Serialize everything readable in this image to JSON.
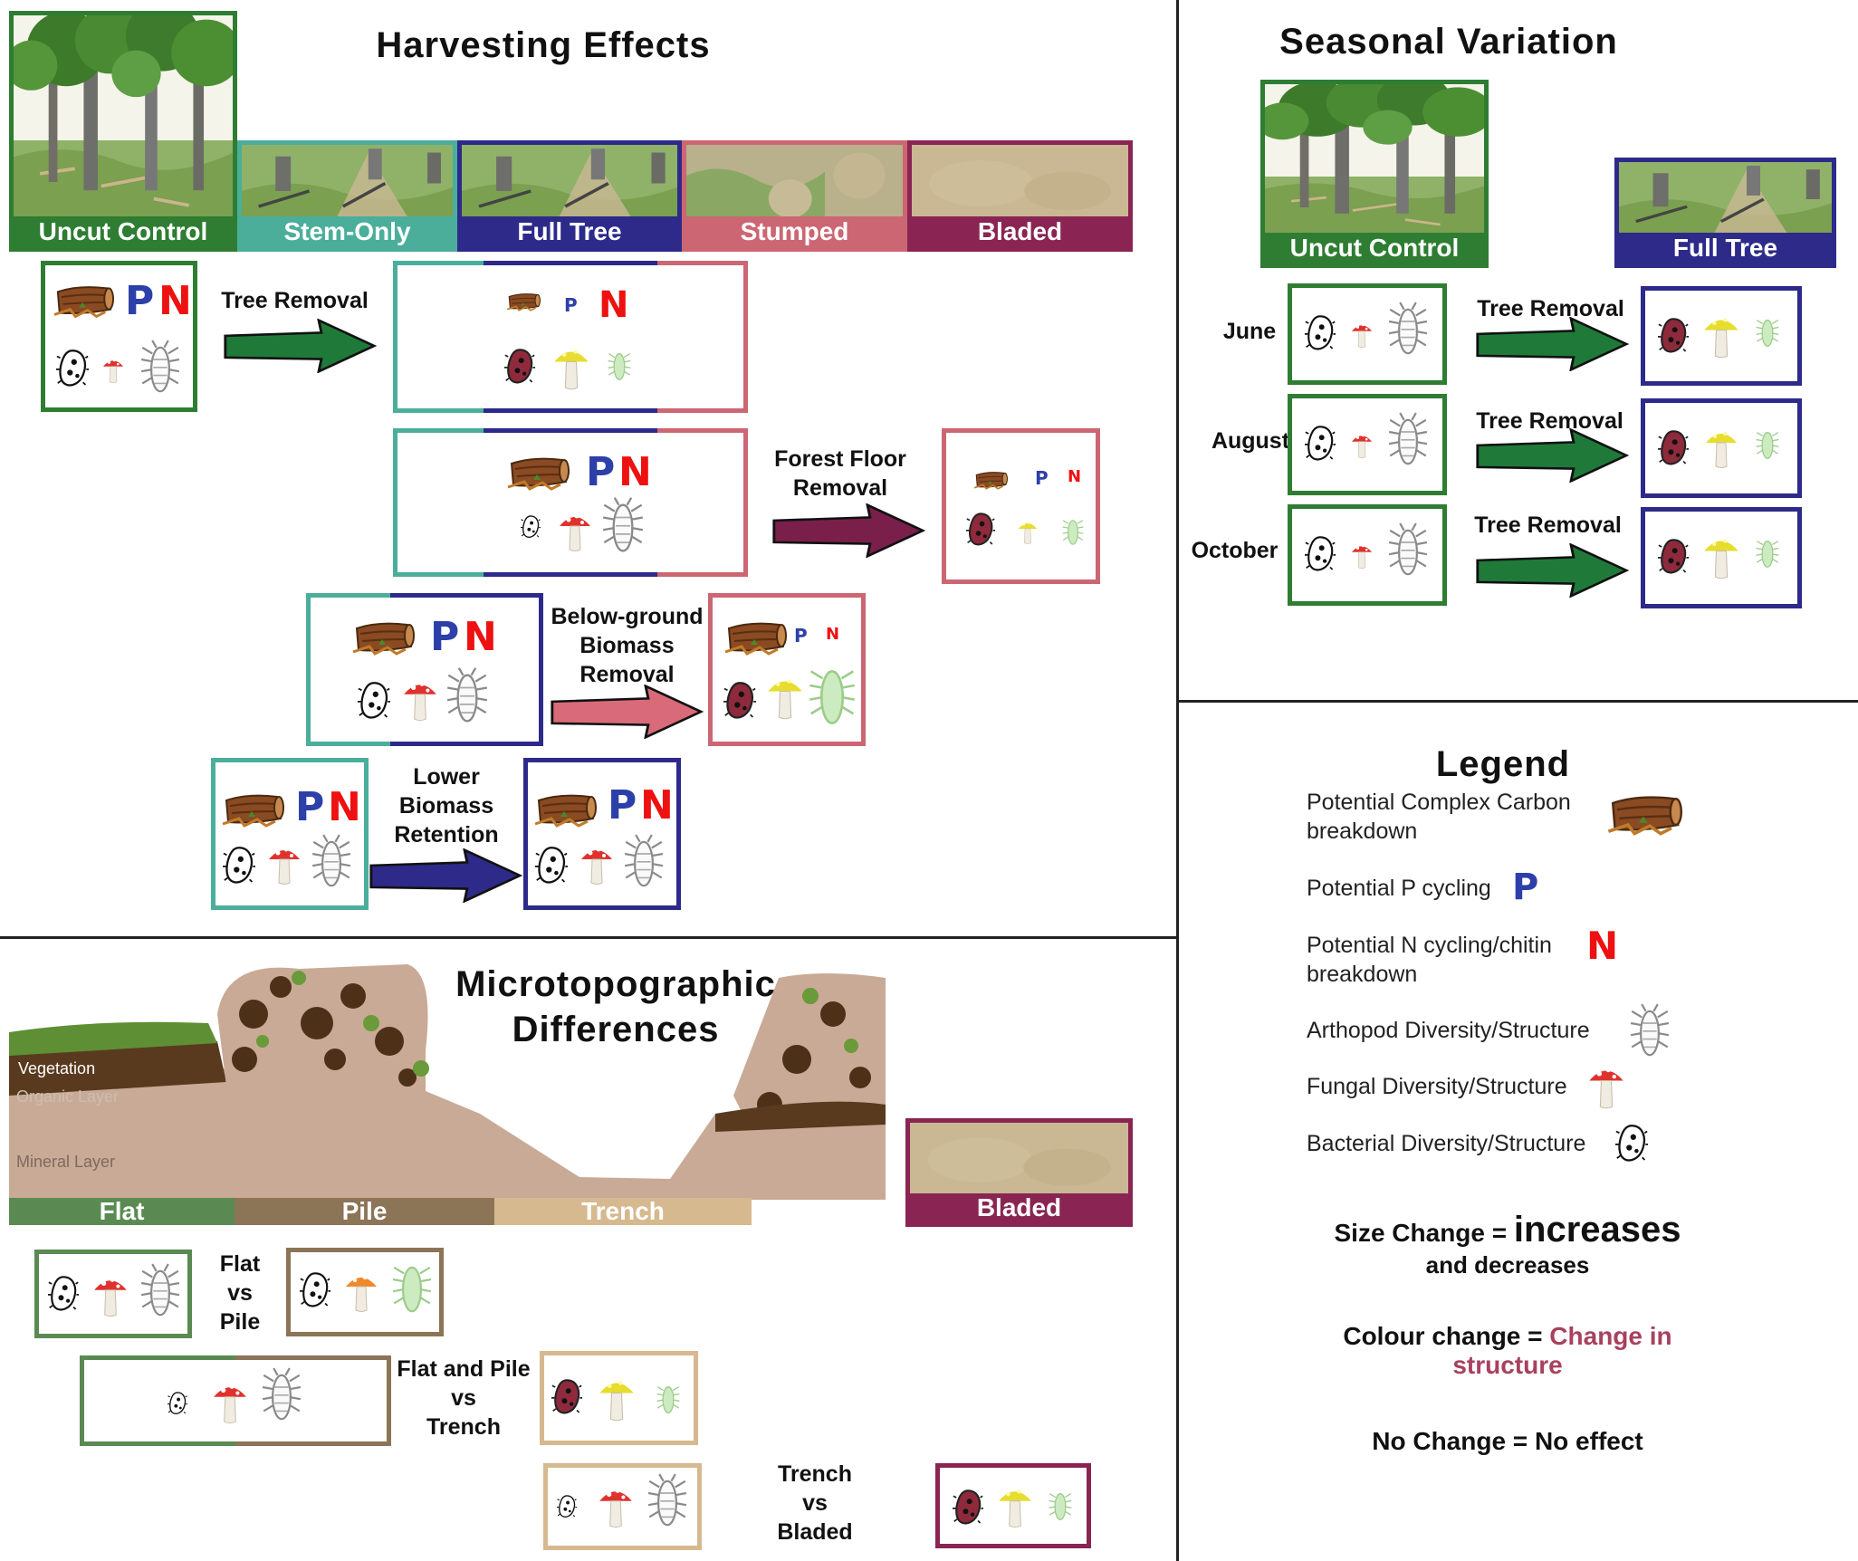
{
  "sections": {
    "harvesting": "Harvesting Effects",
    "seasonal": "Seasonal Variation",
    "micro_line1": "Microtopographic",
    "micro_line2": "Differences",
    "legend": "Legend"
  },
  "treatments": {
    "uncut": "Uncut Control",
    "stem": "Stem-Only",
    "full": "Full Tree",
    "stumped": "Stumped",
    "bladed": "Bladed"
  },
  "letters": {
    "p": "P",
    "n": "N"
  },
  "harvest_arrows": {
    "tree_removal": "Tree Removal",
    "forest_floor_1": "Forest Floor",
    "forest_floor_2": "Removal",
    "below_1": "Below-ground",
    "below_2": "Biomass",
    "below_3": "Removal",
    "lower_1": "Lower",
    "lower_2": "Biomass",
    "lower_3": "Retention"
  },
  "seasons": {
    "june": "June",
    "august": "August",
    "october": "October",
    "arrow_label": "Tree Removal"
  },
  "micro": {
    "vegetation": "Vegetation",
    "organic": "Organic Layer",
    "mineral": "Mineral Layer",
    "flat": "Flat",
    "pile": "Pile",
    "trench": "Trench",
    "bladed": "Bladed",
    "cmp1_1": "Flat",
    "cmp1_2": "vs",
    "cmp1_3": "Pile",
    "cmp2_1": "Flat and Pile",
    "cmp2_2": "vs",
    "cmp2_3": "Trench",
    "cmp3_1": "Trench",
    "cmp3_2": "vs",
    "cmp3_3": "Bladed"
  },
  "legend": {
    "carbon_1": "Potential Complex Carbon",
    "carbon_2": "breakdown",
    "p_cycling": "Potential P cycling",
    "n_1": "Potential N cycling/chitin",
    "n_2": "breakdown",
    "arthropod": "Arthopod Diversity/Structure",
    "fungal": "Fungal Diversity/Structure",
    "bacterial": "Bacterial Diversity/Structure",
    "size_a": "Size Change = ",
    "size_b": "increases",
    "size_c": "and decreases",
    "colour_a": "Colour change = ",
    "colour_b": "Change in",
    "colour_c": "structure",
    "nochange": "No Change = No effect"
  },
  "icons": [
    "log-icon",
    "bacteria-icon",
    "mushroom-icon",
    "arthropod-icon"
  ],
  "colors": {
    "uncut": "#2e7d32",
    "stem": "#4bae9b",
    "full": "#2d2a8a",
    "stumped": "#cc6673",
    "bladed": "#8a2553",
    "flat": "#5a8a52",
    "pile": "#8c7457",
    "trench": "#d6b98f",
    "P": "#2d3fa8",
    "N": "#ee1111",
    "structure_change": "#a8415e"
  }
}
